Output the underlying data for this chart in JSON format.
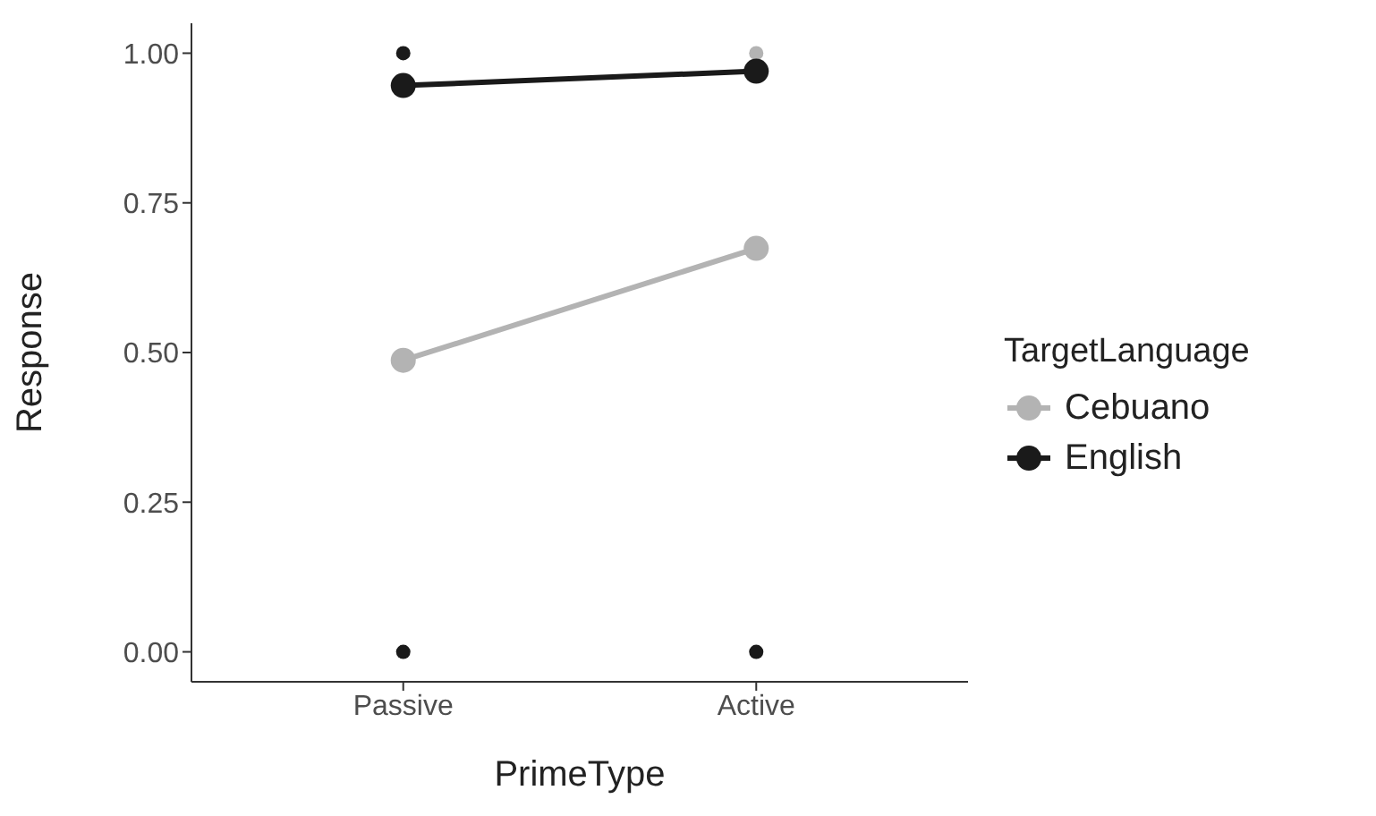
{
  "chart_data": {
    "type": "line",
    "xlabel": "PrimeType",
    "ylabel": "Response",
    "legend_title": "TargetLanguage",
    "legend": "right",
    "grid": false,
    "marker": "circle",
    "line_style": "solid",
    "categories": [
      "Passive",
      "Active"
    ],
    "ylim": [
      -0.05,
      1.05
    ],
    "yticks": [
      {
        "value": 0,
        "label": "0.00"
      },
      {
        "value": 0.25,
        "label": "0.25"
      },
      {
        "value": 0.5,
        "label": "0.50"
      },
      {
        "value": 0.75,
        "label": "0.75"
      },
      {
        "value": 1,
        "label": "1.00"
      }
    ],
    "series": [
      {
        "name": "Cebuano",
        "color": "#b3b3b3",
        "values": [
          0.487,
          0.674
        ]
      },
      {
        "name": "English",
        "color": "#1a1a1a",
        "values": [
          0.946,
          0.97
        ]
      },
      {
        "type": "scatter",
        "color": "#b3b3b3",
        "x": [
          "Active"
        ],
        "values": [
          1
        ]
      },
      {
        "type": "scatter",
        "color": "#1a1a1a",
        "x": [
          "Passive",
          "Passive",
          "Active"
        ],
        "values": [
          1,
          0,
          0
        ]
      }
    ]
  }
}
